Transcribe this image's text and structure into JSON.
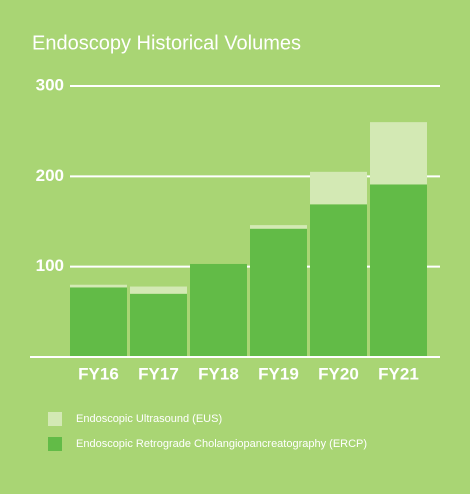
{
  "chart_data": {
    "type": "stacked-bar",
    "title": "Endoscopy Historical Volumes",
    "categories": [
      "FY16",
      "FY17",
      "FY18",
      "FY19",
      "FY20",
      "FY21"
    ],
    "series": [
      {
        "name": "Endoscopic Retrograde Cholangiopancreatography (ERCP)",
        "color": "#62bb47",
        "values": [
          77,
          70,
          103,
          142,
          169,
          191
        ]
      },
      {
        "name": "Endoscopic Ultrasound (EUS)",
        "color": "#d3e9b4",
        "values": [
          3,
          8,
          0,
          4,
          36,
          69
        ]
      }
    ],
    "ylim": [
      0,
      300
    ],
    "yticks": [
      100,
      200,
      300
    ],
    "grid": true
  }
}
